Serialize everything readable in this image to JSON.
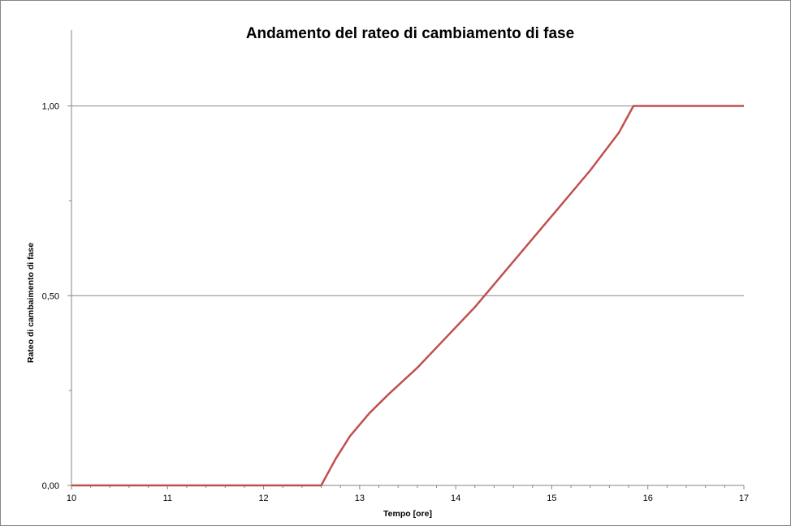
{
  "chart_data": {
    "type": "line",
    "title": "Andamento del rateo di cambiamento di fase",
    "xlabel": "Tempo [ore]",
    "ylabel": "Rateo di cambaimento di fase",
    "xlim": [
      10,
      17
    ],
    "ylim": [
      0,
      1.2
    ],
    "x_ticks": [
      "10",
      "11",
      "12",
      "13",
      "14",
      "15",
      "16",
      "17"
    ],
    "x_tick_values": [
      10,
      11,
      12,
      13,
      14,
      15,
      16,
      17
    ],
    "y_ticks": [
      "0,00",
      "0,50",
      "1,00"
    ],
    "y_tick_values": [
      0,
      0.5,
      1.0
    ],
    "grid": "horizontal major gridlines",
    "legend": "none",
    "series": [
      {
        "color": "#c0504d",
        "x": [
          10,
          12.6,
          12.75,
          12.9,
          13.1,
          13.3,
          13.6,
          13.9,
          14.2,
          14.5,
          14.8,
          15.1,
          15.4,
          15.7,
          15.85,
          17
        ],
        "y": [
          0,
          0,
          0.07,
          0.13,
          0.19,
          0.24,
          0.31,
          0.39,
          0.47,
          0.56,
          0.65,
          0.74,
          0.83,
          0.93,
          1.0,
          1.0
        ]
      }
    ]
  }
}
